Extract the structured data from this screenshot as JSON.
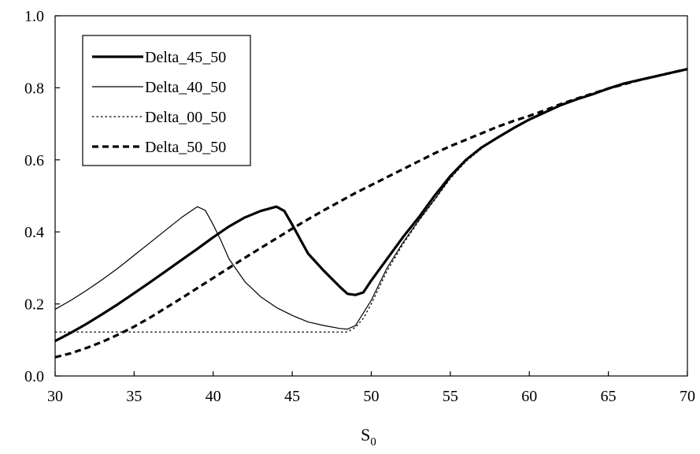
{
  "chart_data": {
    "type": "line",
    "title": "",
    "xlabel": "S",
    "xlabel_subscript": "0",
    "ylabel": "",
    "xlim": [
      30,
      70
    ],
    "ylim": [
      0.0,
      1.0
    ],
    "x_ticks": [
      "30",
      "35",
      "40",
      "45",
      "50",
      "55",
      "60",
      "65",
      "70"
    ],
    "y_ticks": [
      "0.0",
      "0.2",
      "0.4",
      "0.6",
      "0.8",
      "1.0"
    ],
    "grid": false,
    "legend_position": "top-left",
    "series": [
      {
        "name": "Delta_45_50",
        "style": "thick-solid",
        "color": "#000000",
        "points": [
          [
            30,
            0.097
          ],
          [
            31,
            0.12
          ],
          [
            32,
            0.145
          ],
          [
            33,
            0.172
          ],
          [
            34,
            0.2
          ],
          [
            35,
            0.23
          ],
          [
            36,
            0.26
          ],
          [
            37,
            0.291
          ],
          [
            38,
            0.322
          ],
          [
            39,
            0.353
          ],
          [
            40,
            0.385
          ],
          [
            41,
            0.415
          ],
          [
            42,
            0.44
          ],
          [
            43,
            0.458
          ],
          [
            44,
            0.47
          ],
          [
            44.5,
            0.458
          ],
          [
            45,
            0.42
          ],
          [
            45.5,
            0.38
          ],
          [
            46,
            0.34
          ],
          [
            47,
            0.292
          ],
          [
            48,
            0.248
          ],
          [
            48.5,
            0.228
          ],
          [
            49,
            0.225
          ],
          [
            49.5,
            0.232
          ],
          [
            50,
            0.265
          ],
          [
            51,
            0.325
          ],
          [
            52,
            0.385
          ],
          [
            53,
            0.44
          ],
          [
            54,
            0.5
          ],
          [
            55,
            0.555
          ],
          [
            56,
            0.6
          ],
          [
            57,
            0.635
          ],
          [
            58,
            0.662
          ],
          [
            59,
            0.688
          ],
          [
            60,
            0.712
          ],
          [
            61,
            0.732
          ],
          [
            62,
            0.752
          ],
          [
            63,
            0.768
          ],
          [
            64,
            0.782
          ],
          [
            65,
            0.798
          ],
          [
            66,
            0.812
          ],
          [
            67,
            0.822
          ],
          [
            68,
            0.832
          ],
          [
            69,
            0.842
          ],
          [
            70,
            0.852
          ]
        ]
      },
      {
        "name": "Delta_40_50",
        "style": "thin-solid",
        "color": "#000000",
        "points": [
          [
            30,
            0.185
          ],
          [
            31,
            0.21
          ],
          [
            32,
            0.238
          ],
          [
            33,
            0.268
          ],
          [
            34,
            0.3
          ],
          [
            35,
            0.335
          ],
          [
            36,
            0.37
          ],
          [
            37,
            0.405
          ],
          [
            38,
            0.44
          ],
          [
            39,
            0.47
          ],
          [
            39.5,
            0.46
          ],
          [
            40,
            0.42
          ],
          [
            40.5,
            0.375
          ],
          [
            41,
            0.325
          ],
          [
            42,
            0.262
          ],
          [
            43,
            0.22
          ],
          [
            44,
            0.19
          ],
          [
            45,
            0.168
          ],
          [
            46,
            0.15
          ],
          [
            47,
            0.14
          ],
          [
            48,
            0.132
          ],
          [
            48.5,
            0.13
          ],
          [
            49,
            0.14
          ],
          [
            50,
            0.21
          ],
          [
            51,
            0.3
          ],
          [
            52,
            0.37
          ],
          [
            53,
            0.432
          ],
          [
            54,
            0.49
          ],
          [
            55,
            0.55
          ],
          [
            56,
            0.598
          ],
          [
            57,
            0.634
          ],
          [
            58,
            0.662
          ],
          [
            59,
            0.688
          ],
          [
            60,
            0.712
          ],
          [
            61,
            0.732
          ],
          [
            62,
            0.752
          ],
          [
            63,
            0.768
          ],
          [
            64,
            0.782
          ],
          [
            65,
            0.798
          ],
          [
            66,
            0.812
          ],
          [
            67,
            0.822
          ],
          [
            68,
            0.832
          ],
          [
            69,
            0.842
          ],
          [
            70,
            0.852
          ]
        ]
      },
      {
        "name": "Delta_00_50",
        "style": "dotted",
        "color": "#000000",
        "points": [
          [
            30,
            0.122
          ],
          [
            35,
            0.122
          ],
          [
            40,
            0.122
          ],
          [
            45,
            0.122
          ],
          [
            48.5,
            0.122
          ],
          [
            49,
            0.135
          ],
          [
            49.5,
            0.16
          ],
          [
            50,
            0.2
          ],
          [
            51,
            0.292
          ],
          [
            52,
            0.365
          ],
          [
            53,
            0.43
          ],
          [
            54,
            0.488
          ],
          [
            55,
            0.548
          ],
          [
            56,
            0.596
          ],
          [
            57,
            0.632
          ],
          [
            58,
            0.661
          ],
          [
            59,
            0.687
          ],
          [
            60,
            0.711
          ],
          [
            61,
            0.732
          ],
          [
            62,
            0.752
          ],
          [
            63,
            0.768
          ],
          [
            64,
            0.782
          ],
          [
            65,
            0.798
          ],
          [
            66,
            0.812
          ],
          [
            67,
            0.822
          ],
          [
            68,
            0.832
          ],
          [
            69,
            0.842
          ],
          [
            70,
            0.852
          ]
        ]
      },
      {
        "name": "Delta_50_50",
        "style": "thick-dashed",
        "color": "#000000",
        "points": [
          [
            30,
            0.052
          ],
          [
            31,
            0.063
          ],
          [
            32,
            0.078
          ],
          [
            33,
            0.095
          ],
          [
            34,
            0.115
          ],
          [
            35,
            0.137
          ],
          [
            36,
            0.162
          ],
          [
            37,
            0.189
          ],
          [
            38,
            0.216
          ],
          [
            39,
            0.244
          ],
          [
            40,
            0.272
          ],
          [
            41,
            0.3
          ],
          [
            42,
            0.328
          ],
          [
            43,
            0.355
          ],
          [
            44,
            0.382
          ],
          [
            45,
            0.409
          ],
          [
            46,
            0.435
          ],
          [
            47,
            0.46
          ],
          [
            48,
            0.484
          ],
          [
            49,
            0.508
          ],
          [
            50,
            0.53
          ],
          [
            51,
            0.552
          ],
          [
            52,
            0.574
          ],
          [
            53,
            0.596
          ],
          [
            54,
            0.618
          ],
          [
            55,
            0.638
          ],
          [
            56,
            0.656
          ],
          [
            57,
            0.674
          ],
          [
            58,
            0.692
          ],
          [
            59,
            0.708
          ],
          [
            60,
            0.722
          ],
          [
            61,
            0.738
          ],
          [
            62,
            0.755
          ],
          [
            63,
            0.77
          ],
          [
            64,
            0.784
          ],
          [
            65,
            0.798
          ],
          [
            66,
            0.81
          ],
          [
            67,
            0.822
          ],
          [
            68,
            0.832
          ],
          [
            69,
            0.842
          ],
          [
            70,
            0.852
          ]
        ]
      }
    ]
  }
}
